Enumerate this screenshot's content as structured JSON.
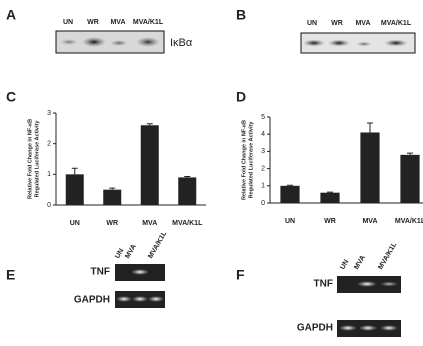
{
  "panels": {
    "A": {
      "letter": "A",
      "lanes": [
        "UN",
        "WR",
        "MVA",
        "MVA/K1L"
      ],
      "band": "IκBα"
    },
    "B": {
      "letter": "B",
      "lanes": [
        "UN",
        "WR",
        "MVA",
        "MVA/K1L"
      ]
    },
    "E": {
      "letter": "E",
      "lanes": [
        "UN",
        "MVA",
        "MVA/K1L"
      ],
      "rows": [
        "TNF",
        "GAPDH"
      ]
    },
    "F": {
      "letter": "F",
      "lanes": [
        "UN",
        "MVA",
        "MVA/K1L"
      ],
      "rows": [
        "TNF",
        "GAPDH"
      ]
    }
  },
  "chart_data": [
    {
      "type": "bar",
      "letter": "C",
      "ylabel": [
        "Relative Fold Change in NF-κB",
        "Regulated Luciferase Activity"
      ],
      "categories": [
        "UN",
        "WR",
        "MVA",
        "MVA/K1L"
      ],
      "series": [
        {
          "color": "#222222",
          "values": [
            1.0,
            0.5,
            2.6,
            0.9
          ],
          "errors": [
            0.2,
            0.05,
            0.05,
            0.03
          ]
        }
      ],
      "ylim": [
        0,
        3
      ],
      "yticks": [
        0,
        1,
        2,
        3
      ]
    },
    {
      "type": "bar",
      "letter": "D",
      "ylabel": [
        "Relative Fold Change in NF-κB",
        "Regulated Luciferase Activity"
      ],
      "categories": [
        "UN",
        "WR",
        "MVA",
        "MVA/K1L"
      ],
      "series": [
        {
          "color": "#222222",
          "values": [
            1.0,
            0.6,
            4.1,
            2.8
          ],
          "errors": [
            0.03,
            0.03,
            0.55,
            0.1
          ]
        }
      ],
      "ylim": [
        0,
        5
      ],
      "yticks": [
        0,
        1,
        2,
        3,
        4,
        5
      ]
    }
  ]
}
